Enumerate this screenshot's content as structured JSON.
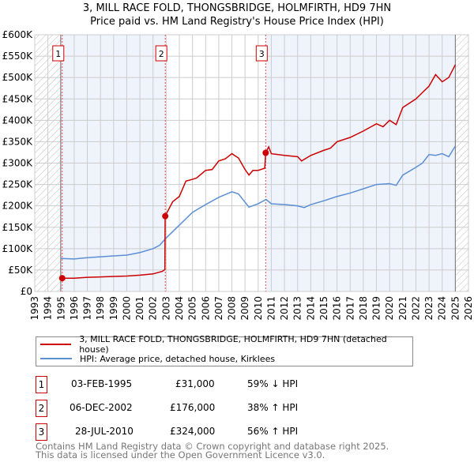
{
  "title": "3, MILL RACE FOLD, THONGSBRIDGE, HOLMFIRTH, HD9 7HN",
  "subtitle": "Price paid vs. HM Land Registry's House Price Index (HPI)",
  "chart_data": {
    "type": "line",
    "title": "3, MILL RACE FOLD, THONGSBRIDGE, HOLMFIRTH, HD9 7HN",
    "subtitle": "Price paid vs. HM Land Registry's House Price Index (HPI)",
    "xlim": [
      1993,
      2026
    ],
    "ylim": [
      0,
      600000
    ],
    "xticks": [
      "1993",
      "1994",
      "1995",
      "1996",
      "1997",
      "1998",
      "1999",
      "2000",
      "2001",
      "2002",
      "2003",
      "2004",
      "2005",
      "2006",
      "2007",
      "2008",
      "2009",
      "2010",
      "2011",
      "2012",
      "2013",
      "2014",
      "2015",
      "2016",
      "2017",
      "2018",
      "2019",
      "2020",
      "2021",
      "2022",
      "2023",
      "2024",
      "2025",
      "2026"
    ],
    "yticks": [
      {
        "v": 0,
        "l": "£0"
      },
      {
        "v": 50000,
        "l": "£50K"
      },
      {
        "v": 100000,
        "l": "£100K"
      },
      {
        "v": 150000,
        "l": "£150K"
      },
      {
        "v": 200000,
        "l": "£200K"
      },
      {
        "v": 250000,
        "l": "£250K"
      },
      {
        "v": 300000,
        "l": "£300K"
      },
      {
        "v": 350000,
        "l": "£350K"
      },
      {
        "v": 400000,
        "l": "£400K"
      },
      {
        "v": 450000,
        "l": "£450K"
      },
      {
        "v": 500000,
        "l": "£500K"
      },
      {
        "v": 550000,
        "l": "£550K"
      },
      {
        "v": 600000,
        "l": "£600K"
      }
    ],
    "grid": true,
    "series": [
      {
        "name": "3, MILL RACE FOLD, THONGSBRIDGE, HOLMFIRTH, HD9 7HN (detached house)",
        "color": "#cc0000",
        "x": [
          1995.09,
          1996,
          1997,
          1998,
          1999,
          2000,
          2001,
          2002,
          2002.7,
          2002.9,
          2002.92,
          2003.5,
          2004,
          2004.5,
          2005,
          2005.3,
          2006,
          2006.5,
          2007,
          2007.5,
          2008,
          2008.5,
          2009,
          2009.3,
          2009.6,
          2010,
          2010.5,
          2010.57,
          2010.8,
          2011,
          2012,
          2013,
          2013.3,
          2014,
          2015,
          2015.5,
          2016,
          2017,
          2018,
          2019,
          2019.5,
          2020,
          2020.5,
          2021,
          2022,
          2022.5,
          2023,
          2023.5,
          2024,
          2024.5,
          2025
        ],
        "y": [
          31000,
          31000,
          33000,
          34000,
          35000,
          36000,
          38000,
          41000,
          47000,
          51000,
          176000,
          210000,
          222000,
          258000,
          262000,
          265000,
          283000,
          285000,
          305000,
          310000,
          322000,
          312000,
          285000,
          272000,
          283000,
          283000,
          288000,
          324000,
          338000,
          322000,
          318000,
          315000,
          305000,
          318000,
          330000,
          335000,
          350000,
          360000,
          375000,
          392000,
          385000,
          400000,
          390000,
          430000,
          450000,
          465000,
          480000,
          507000,
          490000,
          500000,
          530000
        ]
      },
      {
        "name": "HPI: Average price, detached house, Kirklees",
        "color": "#5b8fd6",
        "x": [
          1995,
          1996,
          1997,
          1998,
          1999,
          2000,
          2001,
          2002,
          2002.5,
          2003,
          2004,
          2005,
          2006,
          2007,
          2008,
          2008.5,
          2009.3,
          2010,
          2010.6,
          2011,
          2012,
          2013,
          2013.5,
          2014,
          2015,
          2016,
          2017,
          2018,
          2019,
          2020,
          2020.5,
          2021,
          2022,
          2022.5,
          2023,
          2023.5,
          2024,
          2024.5,
          2025
        ],
        "y": [
          77000,
          76000,
          79000,
          81000,
          83000,
          85000,
          91000,
          100000,
          108000,
          125000,
          155000,
          185000,
          203000,
          220000,
          233000,
          228000,
          197000,
          205000,
          215000,
          205000,
          203000,
          200000,
          196000,
          203000,
          212000,
          222000,
          230000,
          240000,
          250000,
          252000,
          248000,
          272000,
          290000,
          300000,
          320000,
          318000,
          322000,
          315000,
          340000
        ]
      }
    ],
    "sales": [
      {
        "n": "1",
        "x": 1995.09,
        "y": 31000
      },
      {
        "n": "2",
        "x": 2002.93,
        "y": 176000
      },
      {
        "n": "3",
        "x": 2010.57,
        "y": 324000
      }
    ],
    "shaded": [
      [
        1995.09,
        2002.93
      ],
      [
        2010.57,
        2025
      ]
    ],
    "hatched": [
      [
        1993,
        1995.09
      ],
      [
        2025,
        2026
      ]
    ],
    "legend_position": "bottom"
  },
  "transactions": [
    {
      "n": "1",
      "date": "03-FEB-1995",
      "price": "£31,000",
      "hpi": "59% ↓ HPI"
    },
    {
      "n": "2",
      "date": "06-DEC-2002",
      "price": "£176,000",
      "hpi": "38% ↑ HPI"
    },
    {
      "n": "3",
      "date": "28-JUL-2010",
      "price": "£324,000",
      "hpi": "56% ↑ HPI"
    }
  ],
  "footer": [
    "Contains HM Land Registry data © Crown copyright and database right 2025.",
    "This data is licensed under the Open Government Licence v3.0."
  ]
}
